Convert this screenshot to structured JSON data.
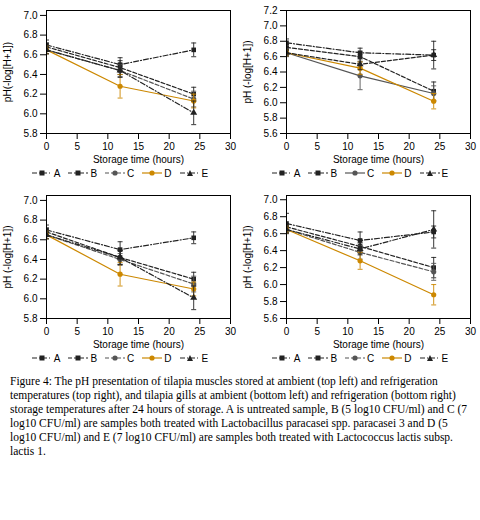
{
  "chart_data": [
    {
      "type": "line",
      "xlabel": "Storage time (hours)",
      "ylabel": "pH(-log[H+1])",
      "xlim": [
        0,
        30
      ],
      "ylim": [
        5.8,
        7.05
      ],
      "xticks": [
        0,
        5,
        10,
        15,
        20,
        25,
        30
      ],
      "yticks": [
        5.8,
        {
          "value": 6.0,
          "label": "6.0"
        },
        6.2,
        6.4,
        6.6,
        6.8,
        {
          "value": 7.0,
          "label": "7.0"
        }
      ],
      "legend": "bottom",
      "grid": false,
      "x": [
        0,
        12,
        24
      ],
      "series": [
        {
          "name": "A",
          "color": "#222222",
          "line_style": "dashdot",
          "marker": "square",
          "values": [
            6.7,
            6.5,
            6.65
          ],
          "yerr": [
            0.05,
            0.07,
            0.07
          ]
        },
        {
          "name": "B",
          "color": "#222222",
          "line_style": "dashed",
          "marker": "square",
          "values": [
            6.68,
            6.47,
            6.2
          ],
          "yerr": [
            0.04,
            0.07,
            0.07
          ]
        },
        {
          "name": "C",
          "color": "#555555",
          "line_style": "dashed",
          "marker": "circle",
          "values": [
            6.65,
            6.44,
            6.15
          ],
          "yerr": [
            0.04,
            0.06,
            0.08
          ]
        },
        {
          "name": "D",
          "color": "#cc8800",
          "line_style": "solid",
          "marker": "circle",
          "values": [
            6.65,
            6.28,
            6.13
          ],
          "yerr": [
            0.04,
            0.12,
            0.07
          ]
        },
        {
          "name": "E",
          "color": "#222222",
          "line_style": "dashdot",
          "marker": "triangle",
          "values": [
            6.65,
            6.44,
            6.01
          ],
          "yerr": [
            0.04,
            0.07,
            0.12
          ]
        }
      ]
    },
    {
      "type": "line",
      "xlabel": "Storage time (hours)",
      "ylabel": "pH (-log[H+1])",
      "xlim": [
        0,
        30
      ],
      "ylim": [
        5.6,
        7.2
      ],
      "xticks": [
        0,
        5,
        10,
        15,
        20,
        25,
        30
      ],
      "yticks": [
        5.6,
        5.8,
        {
          "value": 6.0,
          "label": "6.0"
        },
        6.2,
        6.4,
        6.6,
        6.8,
        {
          "value": 7.0,
          "label": "7.0"
        },
        7.2
      ],
      "legend": "bottom",
      "grid": false,
      "x": [
        0,
        12,
        24
      ],
      "series": [
        {
          "name": "A",
          "color": "#222222",
          "line_style": "dashdot",
          "marker": "square",
          "values": [
            6.78,
            6.65,
            6.62
          ],
          "yerr": [
            0.05,
            0.06,
            0.07
          ]
        },
        {
          "name": "B",
          "color": "#222222",
          "line_style": "dashed",
          "marker": "square",
          "values": [
            6.72,
            6.6,
            6.15
          ],
          "yerr": [
            0.04,
            0.06,
            0.12
          ]
        },
        {
          "name": "C",
          "color": "#555555",
          "line_style": "solid",
          "marker": "circle",
          "values": [
            6.65,
            6.35,
            6.12
          ],
          "yerr": [
            0.05,
            0.18,
            0.1
          ]
        },
        {
          "name": "D",
          "color": "#cc8800",
          "line_style": "solid",
          "marker": "circle",
          "values": [
            6.65,
            6.45,
            6.02
          ],
          "yerr": [
            0.04,
            0.08,
            0.1
          ]
        },
        {
          "name": "E",
          "color": "#222222",
          "line_style": "dashed",
          "marker": "triangle",
          "values": [
            6.65,
            6.5,
            6.62
          ],
          "yerr": [
            0.04,
            0.07,
            0.18
          ]
        }
      ]
    },
    {
      "type": "line",
      "xlabel": "Storage time (hours)",
      "ylabel": "pH (-log[H+1])",
      "xlim": [
        0,
        30
      ],
      "ylim": [
        5.8,
        7.05
      ],
      "xticks": [
        0,
        5,
        10,
        15,
        20,
        25,
        30
      ],
      "yticks": [
        5.8,
        {
          "value": 6.0,
          "label": "6.0"
        },
        6.2,
        6.4,
        6.6,
        6.8,
        {
          "value": 7.0,
          "label": "7.0"
        }
      ],
      "legend": "bottom",
      "grid": false,
      "x": [
        0,
        12,
        24
      ],
      "series": [
        {
          "name": "A",
          "color": "#222222",
          "line_style": "dashdot",
          "marker": "square",
          "values": [
            6.7,
            6.5,
            6.62
          ],
          "yerr": [
            0.05,
            0.08,
            0.06
          ]
        },
        {
          "name": "B",
          "color": "#222222",
          "line_style": "dashed",
          "marker": "square",
          "values": [
            6.68,
            6.42,
            6.2
          ],
          "yerr": [
            0.04,
            0.07,
            0.07
          ]
        },
        {
          "name": "C",
          "color": "#555555",
          "line_style": "dashed",
          "marker": "circle",
          "values": [
            6.65,
            6.4,
            6.15
          ],
          "yerr": [
            0.04,
            0.06,
            0.08
          ]
        },
        {
          "name": "D",
          "color": "#cc8800",
          "line_style": "solid",
          "marker": "circle",
          "values": [
            6.65,
            6.25,
            6.1
          ],
          "yerr": [
            0.04,
            0.12,
            0.07
          ]
        },
        {
          "name": "E",
          "color": "#222222",
          "line_style": "dashdot",
          "marker": "triangle",
          "values": [
            6.65,
            6.42,
            6.01
          ],
          "yerr": [
            0.04,
            0.07,
            0.12
          ]
        }
      ]
    },
    {
      "type": "line",
      "xlabel": "Storage time (hours)",
      "ylabel": "pH (-log[H+1])",
      "xlim": [
        0,
        30
      ],
      "ylim": [
        5.6,
        7.05
      ],
      "xticks": [
        0,
        5,
        10,
        15,
        20,
        25,
        30
      ],
      "yticks": [
        5.6,
        5.8,
        {
          "value": 6.0,
          "label": "6.0"
        },
        6.2,
        6.4,
        6.6,
        6.8,
        {
          "value": 7.0,
          "label": "7.0"
        }
      ],
      "legend": "bottom",
      "grid": false,
      "x": [
        0,
        12,
        24
      ],
      "series": [
        {
          "name": "A",
          "color": "#222222",
          "line_style": "dashdot",
          "marker": "square",
          "values": [
            6.72,
            6.52,
            6.62
          ],
          "yerr": [
            0.12,
            0.1,
            0.07
          ]
        },
        {
          "name": "B",
          "color": "#222222",
          "line_style": "dashed",
          "marker": "square",
          "values": [
            6.68,
            6.45,
            6.2
          ],
          "yerr": [
            0.04,
            0.07,
            0.12
          ]
        },
        {
          "name": "C",
          "color": "#555555",
          "line_style": "dashed",
          "marker": "circle",
          "values": [
            6.65,
            6.38,
            6.15
          ],
          "yerr": [
            0.04,
            0.08,
            0.1
          ]
        },
        {
          "name": "D",
          "color": "#cc8800",
          "line_style": "solid",
          "marker": "circle",
          "values": [
            6.65,
            6.28,
            5.88
          ],
          "yerr": [
            0.04,
            0.1,
            0.12
          ]
        },
        {
          "name": "E",
          "color": "#222222",
          "line_style": "dashdot",
          "marker": "triangle",
          "values": [
            6.65,
            6.42,
            6.65
          ],
          "yerr": [
            0.04,
            0.07,
            0.22
          ]
        }
      ]
    }
  ],
  "caption": "Figure 4: The pH presentation of tilapia muscles stored at ambient (top left) and refrigeration temperatures (top right), and tilapia gills at ambient (bottom left) and refrigeration (bottom right) storage temperatures after 24 hours of storage. A is untreated sample, B (5 log10 CFU/ml) and C (7 log10 CFU/ml) are samples both treated with Lactobacillus paracasei spp. paracasei 3 and D (5 log10 CFU/ml) and E (7 log10 CFU/ml) are samples both treated with Lactococcus lactis subsp. lactis 1."
}
